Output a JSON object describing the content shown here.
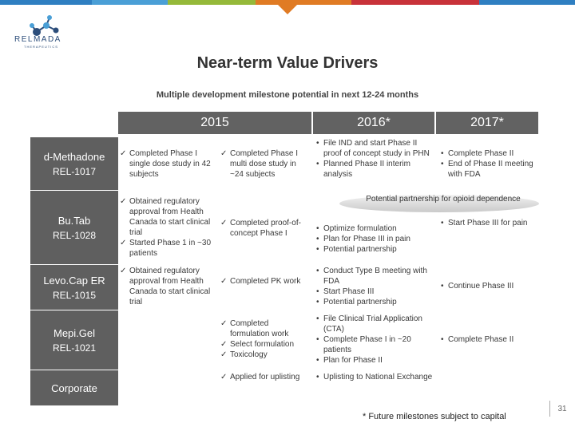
{
  "colors": {
    "stripe": [
      "#2f7fc1",
      "#4a9fd6",
      "#95b93a",
      "#e07b24",
      "#c8323a",
      "#2f7fc1"
    ],
    "header_bg": "#626262",
    "row_label_bg": "#5f5f5f"
  },
  "logo": {
    "text": "RELMADA",
    "subtext": "THERAPEUTICS",
    "icon": "molecule-icon"
  },
  "title": "Near-term Value Drivers",
  "subtitle": "Multiple development milestone potential in next 12-24 months",
  "headers": {
    "y2015": "2015",
    "y2016": "2016*",
    "y2017": "2017*"
  },
  "rows": [
    {
      "name": "d-Methadone",
      "code": "REL-1017",
      "c1": [
        "Completed Phase I single dose study in 42 subjects"
      ],
      "c2": [
        "Completed Phase I multi dose study in ~24 subjects"
      ],
      "c3": [
        "File IND and start Phase II proof of concept study in PHN",
        "Planned Phase II interim analysis"
      ],
      "c4": [
        "Complete Phase II",
        "End of Phase II meeting with FDA"
      ]
    },
    {
      "name": "Bu.Tab",
      "code": "REL-1028",
      "c1": [
        "Obtained regulatory approval from Health Canada to start clinical trial",
        "Started Phase 1 in ~30 patients"
      ],
      "c2": [
        "Completed proof-of-concept Phase I"
      ],
      "banner": "Potential partnership for opioid dependence",
      "c3": [
        "Optimize formulation",
        "Plan for Phase III in pain",
        "Potential partnership"
      ],
      "c4": [
        "Start Phase III for pain"
      ]
    },
    {
      "name": "Levo.Cap ER",
      "code": "REL-1015",
      "c1": [
        "Obtained regulatory approval from Health Canada to start clinical trial"
      ],
      "c2": [
        "Completed PK work"
      ],
      "c3": [
        "Conduct Type B meeting with FDA",
        "Start Phase III",
        "Potential partnership"
      ],
      "c4": [
        "Continue Phase III"
      ]
    },
    {
      "name": "Mepi.Gel",
      "code": "REL-1021",
      "c2": [
        "Completed formulation work",
        "Select formulation",
        "Toxicology"
      ],
      "c3": [
        "File Clinical Trial Application (CTA)",
        "Complete Phase I in ~20 patients",
        "Plan for Phase II"
      ],
      "c4": [
        "Complete Phase II"
      ]
    },
    {
      "name": "Corporate",
      "c2": [
        "Applied for uplisting"
      ],
      "c3": [
        "Uplisting to National Exchange"
      ]
    }
  ],
  "footnote": "* Future milestones subject to capital",
  "page_number": "31"
}
